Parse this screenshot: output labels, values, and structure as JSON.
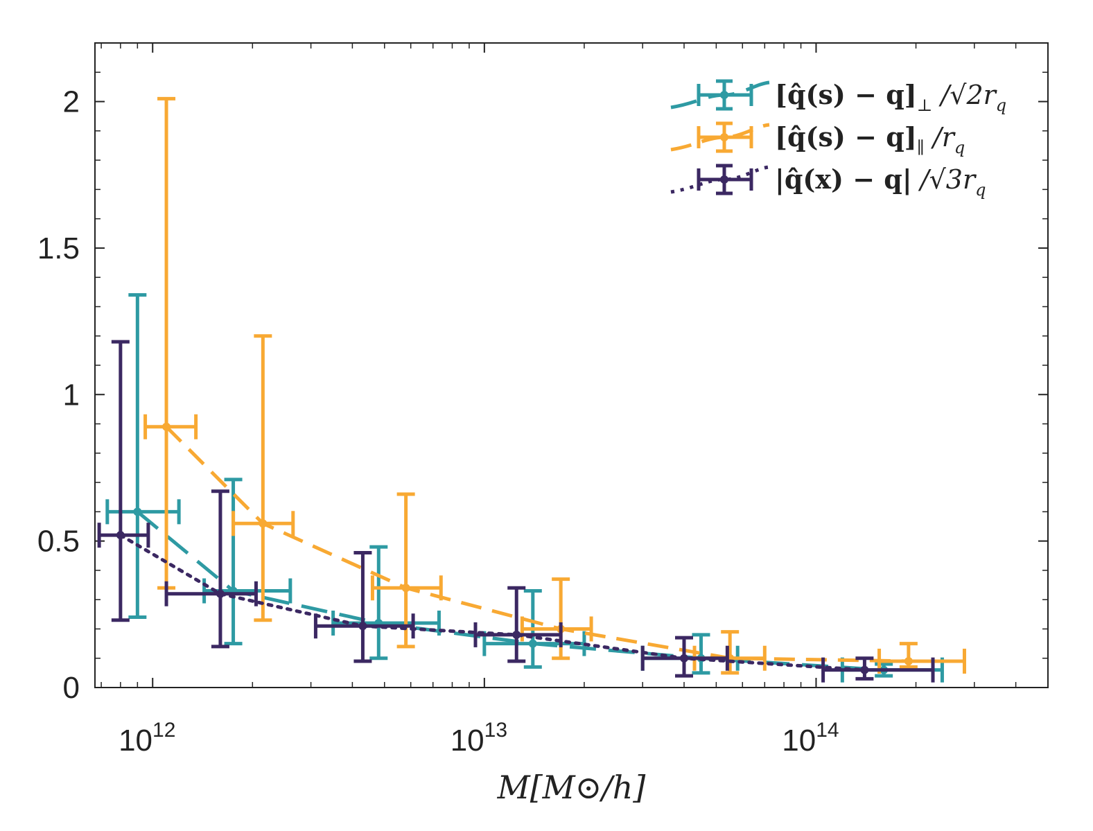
{
  "chart_data": {
    "type": "scatter",
    "xlabel": "M[M⊙/h]",
    "ylabel": "",
    "xscale": "log",
    "xlim": [
      670000000000.0,
      500000000000000.0
    ],
    "ylim": [
      0,
      2.2
    ],
    "yticks": [
      0,
      0.5,
      1,
      1.5,
      2
    ],
    "ytick_labels": [
      "0",
      "0.5",
      "1",
      "1.5",
      "2"
    ],
    "xticks": [
      1000000000000.0,
      10000000000000.0,
      100000000000000.0
    ],
    "xtick_labels": [
      {
        "base": "10",
        "exp": "12"
      },
      {
        "base": "10",
        "exp": "13"
      },
      {
        "base": "10",
        "exp": "14"
      }
    ],
    "grid": false,
    "legend_position": "top-right",
    "series": [
      {
        "name": "[q̂(s) − q]⊥ / √2 r_q",
        "color": "#2e9aa3",
        "linestyle": "long-dash",
        "points": [
          {
            "x": 900000000000.0,
            "y": 0.6,
            "xlo": 730000000000.0,
            "xhi": 1200000000000.0,
            "ylo": 0.24,
            "yhi": 1.34
          },
          {
            "x": 1750000000000.0,
            "y": 0.33,
            "xlo": 1430000000000.0,
            "xhi": 2600000000000.0,
            "ylo": 0.15,
            "yhi": 0.71
          },
          {
            "x": 4800000000000.0,
            "y": 0.22,
            "xlo": 3500000000000.0,
            "xhi": 7300000000000.0,
            "ylo": 0.1,
            "yhi": 0.48
          },
          {
            "x": 14000000000000.0,
            "y": 0.15,
            "xlo": 10000000000000.0,
            "xhi": 20000000000000.0,
            "ylo": 0.07,
            "yhi": 0.33
          },
          {
            "x": 45000000000000.0,
            "y": 0.1,
            "xlo": 30000000000000.0,
            "xhi": 58000000000000.0,
            "ylo": 0.05,
            "yhi": 0.18
          },
          {
            "x": 160000000000000.0,
            "y": 0.06,
            "xlo": 120000000000000.0,
            "xhi": 240000000000000.0,
            "ylo": 0.04,
            "yhi": 0.08
          }
        ]
      },
      {
        "name": "[q̂(s) − q]∥ / r_q",
        "color": "#f8a933",
        "linestyle": "dash",
        "points": [
          {
            "x": 1100000000000.0,
            "y": 0.89,
            "xlo": 950000000000.0,
            "xhi": 1350000000000.0,
            "ylo": 0.34,
            "yhi": 2.01
          },
          {
            "x": 2150000000000.0,
            "y": 0.56,
            "xlo": 1750000000000.0,
            "xhi": 2650000000000.0,
            "ylo": 0.23,
            "yhi": 1.2
          },
          {
            "x": 5800000000000.0,
            "y": 0.34,
            "xlo": 4600000000000.0,
            "xhi": 7400000000000.0,
            "ylo": 0.14,
            "yhi": 0.66
          },
          {
            "x": 17000000000000.0,
            "y": 0.2,
            "xlo": 13000000000000.0,
            "xhi": 21000000000000.0,
            "ylo": 0.1,
            "yhi": 0.37
          },
          {
            "x": 55000000000000.0,
            "y": 0.1,
            "xlo": 43000000000000.0,
            "xhi": 70000000000000.0,
            "ylo": 0.05,
            "yhi": 0.19
          },
          {
            "x": 190000000000000.0,
            "y": 0.09,
            "xlo": 155000000000000.0,
            "xhi": 280000000000000.0,
            "ylo": 0.07,
            "yhi": 0.15
          }
        ]
      },
      {
        "name": "|q̂(x) − q| / √3 r_q",
        "color": "#3b2862",
        "linestyle": "dotted",
        "points": [
          {
            "x": 800000000000.0,
            "y": 0.52,
            "xlo": 690000000000.0,
            "xhi": 970000000000.0,
            "ylo": 0.23,
            "yhi": 1.18
          },
          {
            "x": 1600000000000.0,
            "y": 0.32,
            "xlo": 1100000000000.0,
            "xhi": 2050000000000.0,
            "ylo": 0.14,
            "yhi": 0.67
          },
          {
            "x": 4300000000000.0,
            "y": 0.21,
            "xlo": 3100000000000.0,
            "xhi": 6100000000000.0,
            "ylo": 0.09,
            "yhi": 0.46
          },
          {
            "x": 12500000000000.0,
            "y": 0.18,
            "xlo": 9400000000000.0,
            "xhi": 17000000000000.0,
            "ylo": 0.09,
            "yhi": 0.34
          },
          {
            "x": 40000000000000.0,
            "y": 0.1,
            "xlo": 30000000000000.0,
            "xhi": 54000000000000.0,
            "ylo": 0.04,
            "yhi": 0.17
          },
          {
            "x": 140000000000000.0,
            "y": 0.06,
            "xlo": 105000000000000.0,
            "xhi": 225000000000000.0,
            "ylo": 0.03,
            "yhi": 0.1
          }
        ]
      }
    ]
  },
  "legend": {
    "items": [
      {
        "label": "[q̂(s) − q]⊥ /√2r_q",
        "main": "[q̂(s) − q]",
        "sub1": "⊥",
        "rest": " /√2r",
        "sub2": "q"
      },
      {
        "label": "[q̂(s) − q]∥ /r_q",
        "main": "[q̂(s) − q]",
        "sub1": "∥",
        "rest": " /r",
        "sub2": "q"
      },
      {
        "label": "|q̂(x) − q| /√3r_q",
        "main": "|q̂(x) − q|",
        "sub1": "",
        "rest": " /√3r",
        "sub2": "q"
      }
    ]
  }
}
